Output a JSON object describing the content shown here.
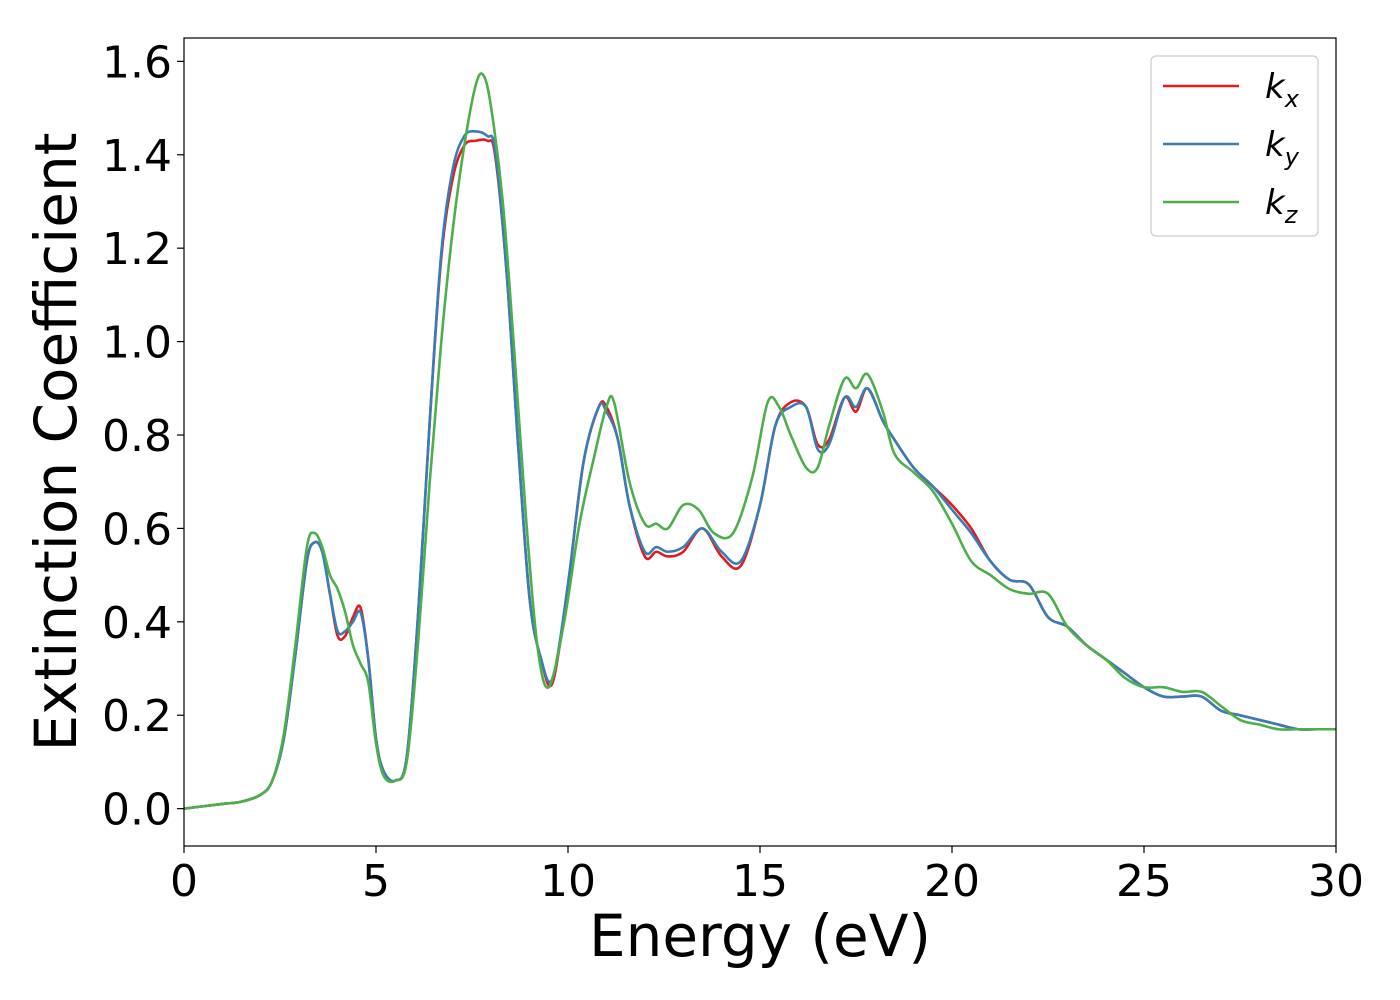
{
  "chart_data": {
    "type": "line",
    "title": "",
    "xlabel": "Energy (eV)",
    "ylabel": "Extinction Coefficient",
    "xlim": [
      0,
      30
    ],
    "ylim": [
      -0.08,
      1.65
    ],
    "xticks": [
      {
        "value": 0,
        "label": "0"
      },
      {
        "value": 5,
        "label": "5"
      },
      {
        "value": 10,
        "label": "10"
      },
      {
        "value": 15,
        "label": "15"
      },
      {
        "value": 20,
        "label": "20"
      },
      {
        "value": 25,
        "label": "25"
      },
      {
        "value": 30,
        "label": "30"
      }
    ],
    "yticks": [
      {
        "value": 0.0,
        "label": "0.0"
      },
      {
        "value": 0.2,
        "label": "0.2"
      },
      {
        "value": 0.4,
        "label": "0.4"
      },
      {
        "value": 0.6,
        "label": "0.6"
      },
      {
        "value": 0.8,
        "label": "0.8"
      },
      {
        "value": 1.0,
        "label": "1.0"
      },
      {
        "value": 1.2,
        "label": "1.2"
      },
      {
        "value": 1.4,
        "label": "1.4"
      },
      {
        "value": 1.6,
        "label": "1.6"
      }
    ],
    "grid": false,
    "legend_position": "top-right",
    "series": [
      {
        "name": "k",
        "subscript": "x",
        "color": "#e41a1c",
        "x": [
          0,
          1,
          1.5,
          2,
          2.3,
          2.6,
          2.9,
          3.2,
          3.4,
          3.6,
          3.8,
          4.0,
          4.2,
          4.4,
          4.6,
          4.8,
          5.0,
          5.2,
          5.5,
          5.8,
          6.1,
          6.4,
          6.7,
          7.0,
          7.3,
          7.6,
          7.9,
          8.1,
          8.4,
          8.7,
          9.0,
          9.3,
          9.6,
          10.0,
          10.4,
          10.8,
          11.0,
          11.3,
          11.6,
          12.0,
          12.3,
          12.6,
          13.0,
          13.5,
          14.0,
          14.5,
          15.0,
          15.4,
          15.8,
          16.2,
          16.5,
          16.8,
          17.2,
          17.5,
          17.8,
          18.2,
          18.5,
          19.0,
          19.5,
          20.0,
          20.5,
          21.0,
          21.5,
          22.0,
          22.5,
          23.0,
          23.5,
          24.0,
          24.5,
          25.0,
          25.5,
          26.0,
          26.5,
          27.0,
          27.5,
          28.0,
          28.5,
          29.0,
          29.5,
          30.0
        ],
        "y": [
          0.0,
          0.01,
          0.015,
          0.03,
          0.06,
          0.15,
          0.33,
          0.53,
          0.57,
          0.55,
          0.46,
          0.37,
          0.37,
          0.41,
          0.43,
          0.32,
          0.15,
          0.08,
          0.06,
          0.11,
          0.42,
          0.83,
          1.18,
          1.35,
          1.42,
          1.43,
          1.43,
          1.4,
          1.15,
          0.78,
          0.45,
          0.32,
          0.27,
          0.48,
          0.74,
          0.86,
          0.86,
          0.79,
          0.65,
          0.54,
          0.55,
          0.54,
          0.55,
          0.6,
          0.54,
          0.52,
          0.65,
          0.82,
          0.87,
          0.86,
          0.78,
          0.79,
          0.88,
          0.85,
          0.9,
          0.83,
          0.79,
          0.73,
          0.69,
          0.65,
          0.6,
          0.53,
          0.49,
          0.48,
          0.41,
          0.39,
          0.35,
          0.32,
          0.29,
          0.26,
          0.24,
          0.24,
          0.24,
          0.21,
          0.2,
          0.19,
          0.18,
          0.17,
          0.17,
          0.17
        ]
      },
      {
        "name": "k",
        "subscript": "y",
        "color": "#377eb8",
        "x": [
          0,
          1,
          1.5,
          2,
          2.3,
          2.6,
          2.9,
          3.2,
          3.4,
          3.6,
          3.8,
          4.0,
          4.2,
          4.4,
          4.6,
          4.8,
          5.0,
          5.2,
          5.5,
          5.8,
          6.1,
          6.4,
          6.7,
          7.0,
          7.3,
          7.6,
          7.9,
          8.1,
          8.4,
          8.7,
          9.0,
          9.3,
          9.6,
          10.0,
          10.4,
          10.8,
          11.0,
          11.3,
          11.6,
          12.0,
          12.3,
          12.6,
          13.0,
          13.5,
          14.0,
          14.5,
          15.0,
          15.4,
          15.8,
          16.2,
          16.5,
          16.8,
          17.2,
          17.5,
          17.8,
          18.2,
          18.5,
          19.0,
          19.5,
          20.0,
          20.5,
          21.0,
          21.5,
          22.0,
          22.5,
          23.0,
          23.5,
          24.0,
          24.5,
          25.0,
          25.5,
          26.0,
          26.5,
          27.0,
          27.5,
          28.0,
          28.5,
          29.0,
          29.5,
          30.0
        ],
        "y": [
          0.0,
          0.01,
          0.015,
          0.03,
          0.06,
          0.15,
          0.33,
          0.53,
          0.57,
          0.55,
          0.46,
          0.38,
          0.38,
          0.4,
          0.42,
          0.32,
          0.15,
          0.08,
          0.06,
          0.11,
          0.42,
          0.83,
          1.19,
          1.37,
          1.44,
          1.45,
          1.44,
          1.41,
          1.15,
          0.78,
          0.45,
          0.32,
          0.28,
          0.48,
          0.74,
          0.86,
          0.85,
          0.79,
          0.65,
          0.55,
          0.56,
          0.55,
          0.56,
          0.6,
          0.55,
          0.53,
          0.65,
          0.82,
          0.86,
          0.86,
          0.77,
          0.78,
          0.88,
          0.86,
          0.9,
          0.83,
          0.79,
          0.73,
          0.69,
          0.64,
          0.59,
          0.53,
          0.49,
          0.48,
          0.41,
          0.39,
          0.35,
          0.32,
          0.29,
          0.26,
          0.24,
          0.24,
          0.24,
          0.21,
          0.2,
          0.19,
          0.18,
          0.17,
          0.17,
          0.17
        ]
      },
      {
        "name": "k",
        "subscript": "z",
        "color": "#4daf4a",
        "x": [
          0,
          1,
          1.5,
          2,
          2.3,
          2.6,
          2.9,
          3.2,
          3.4,
          3.6,
          3.8,
          4.0,
          4.2,
          4.4,
          4.6,
          4.8,
          5.0,
          5.2,
          5.5,
          5.8,
          6.1,
          6.4,
          6.7,
          7.0,
          7.3,
          7.6,
          7.8,
          8.0,
          8.3,
          8.6,
          8.9,
          9.2,
          9.5,
          9.9,
          10.3,
          10.7,
          11.0,
          11.2,
          11.6,
          12.0,
          12.3,
          12.6,
          13.0,
          13.4,
          13.8,
          14.3,
          14.8,
          15.2,
          15.5,
          15.8,
          16.2,
          16.5,
          16.8,
          17.2,
          17.5,
          17.8,
          18.2,
          18.5,
          19.0,
          19.5,
          20.0,
          20.5,
          21.0,
          21.5,
          22.0,
          22.5,
          23.0,
          23.5,
          24.0,
          24.5,
          25.0,
          25.5,
          26.0,
          26.5,
          27.0,
          27.5,
          28.0,
          28.5,
          29.0,
          29.5,
          30.0
        ],
        "y": [
          0.0,
          0.01,
          0.015,
          0.03,
          0.06,
          0.16,
          0.35,
          0.56,
          0.59,
          0.56,
          0.5,
          0.47,
          0.42,
          0.35,
          0.31,
          0.27,
          0.14,
          0.07,
          0.06,
          0.1,
          0.36,
          0.7,
          1.0,
          1.24,
          1.42,
          1.55,
          1.57,
          1.5,
          1.3,
          0.98,
          0.63,
          0.35,
          0.26,
          0.4,
          0.61,
          0.76,
          0.86,
          0.87,
          0.7,
          0.61,
          0.61,
          0.6,
          0.65,
          0.64,
          0.59,
          0.59,
          0.71,
          0.87,
          0.86,
          0.8,
          0.73,
          0.73,
          0.82,
          0.92,
          0.9,
          0.93,
          0.85,
          0.76,
          0.72,
          0.68,
          0.61,
          0.53,
          0.5,
          0.47,
          0.46,
          0.46,
          0.39,
          0.35,
          0.32,
          0.28,
          0.26,
          0.26,
          0.25,
          0.25,
          0.22,
          0.19,
          0.18,
          0.17,
          0.17,
          0.17,
          0.17
        ]
      }
    ]
  }
}
